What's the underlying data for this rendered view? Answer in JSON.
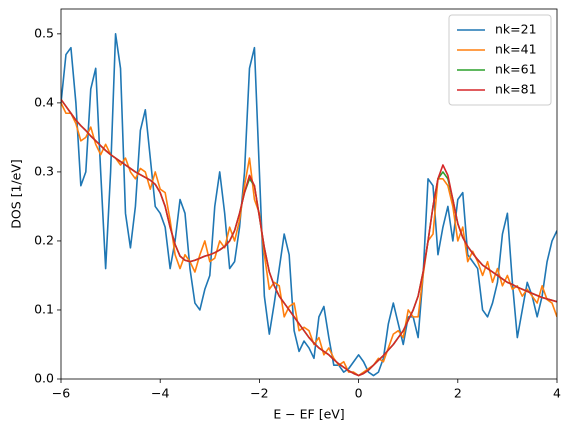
{
  "chart_data": {
    "type": "line",
    "xlabel": "E − EF [eV]",
    "ylabel": "DOS [1/eV]",
    "xlim": [
      -6,
      4
    ],
    "ylim": [
      0,
      0.536
    ],
    "xticks": [
      {
        "value": -6,
        "label": "−6"
      },
      {
        "value": -4,
        "label": "−4"
      },
      {
        "value": -2,
        "label": "−2"
      },
      0,
      2,
      4
    ],
    "yticks": [
      {
        "value": 0,
        "label": "0.0"
      },
      0.1,
      0.2,
      0.3,
      0.4,
      0.5
    ],
    "legend": "upper right",
    "x": [
      -6.0,
      -5.9,
      -5.8,
      -5.7,
      -5.6,
      -5.5,
      -5.4,
      -5.3,
      -5.2,
      -5.1,
      -5.0,
      -4.9,
      -4.8,
      -4.7,
      -4.6,
      -4.5,
      -4.4,
      -4.3,
      -4.2,
      -4.1,
      -4.0,
      -3.9,
      -3.8,
      -3.7,
      -3.6,
      -3.5,
      -3.4,
      -3.3,
      -3.2,
      -3.1,
      -3.0,
      -2.9,
      -2.8,
      -2.7,
      -2.6,
      -2.5,
      -2.4,
      -2.3,
      -2.2,
      -2.1,
      -2.0,
      -1.9,
      -1.8,
      -1.7,
      -1.6,
      -1.5,
      -1.4,
      -1.3,
      -1.2,
      -1.1,
      -1.0,
      -0.9,
      -0.8,
      -0.7,
      -0.6,
      -0.5,
      -0.4,
      -0.3,
      -0.2,
      -0.1,
      0.0,
      0.1,
      0.2,
      0.3,
      0.4,
      0.5,
      0.6,
      0.7,
      0.8,
      0.9,
      1.0,
      1.1,
      1.2,
      1.3,
      1.4,
      1.5,
      1.6,
      1.7,
      1.8,
      1.9,
      2.0,
      2.1,
      2.2,
      2.3,
      2.4,
      2.5,
      2.6,
      2.7,
      2.8,
      2.9,
      3.0,
      3.1,
      3.2,
      3.3,
      3.4,
      3.5,
      3.6,
      3.7,
      3.8,
      3.9,
      4.0
    ],
    "series": [
      {
        "name": "nk=21",
        "color": "#1f77b4",
        "values": [
          0.4,
          0.47,
          0.48,
          0.4,
          0.28,
          0.3,
          0.42,
          0.45,
          0.3,
          0.16,
          0.3,
          0.5,
          0.45,
          0.24,
          0.19,
          0.25,
          0.36,
          0.39,
          0.32,
          0.25,
          0.24,
          0.22,
          0.16,
          0.2,
          0.26,
          0.24,
          0.16,
          0.11,
          0.1,
          0.13,
          0.15,
          0.25,
          0.3,
          0.24,
          0.16,
          0.17,
          0.22,
          0.3,
          0.45,
          0.48,
          0.3,
          0.12,
          0.065,
          0.11,
          0.16,
          0.21,
          0.18,
          0.07,
          0.04,
          0.055,
          0.045,
          0.03,
          0.09,
          0.105,
          0.06,
          0.02,
          0.02,
          0.01,
          0.015,
          0.025,
          0.035,
          0.025,
          0.01,
          0.005,
          0.01,
          0.03,
          0.08,
          0.11,
          0.08,
          0.05,
          0.09,
          0.09,
          0.06,
          0.15,
          0.29,
          0.28,
          0.18,
          0.22,
          0.25,
          0.2,
          0.26,
          0.27,
          0.18,
          0.17,
          0.16,
          0.1,
          0.09,
          0.11,
          0.14,
          0.21,
          0.24,
          0.14,
          0.06,
          0.1,
          0.14,
          0.12,
          0.09,
          0.12,
          0.17,
          0.2,
          0.215
        ]
      },
      {
        "name": "nk=41",
        "color": "#ff7f0e",
        "values": [
          0.4,
          0.385,
          0.385,
          0.37,
          0.345,
          0.35,
          0.365,
          0.34,
          0.325,
          0.34,
          0.325,
          0.32,
          0.31,
          0.32,
          0.3,
          0.29,
          0.305,
          0.3,
          0.275,
          0.3,
          0.275,
          0.27,
          0.23,
          0.18,
          0.16,
          0.18,
          0.17,
          0.155,
          0.18,
          0.2,
          0.17,
          0.175,
          0.2,
          0.19,
          0.22,
          0.2,
          0.23,
          0.28,
          0.32,
          0.26,
          0.24,
          0.18,
          0.13,
          0.14,
          0.135,
          0.09,
          0.105,
          0.11,
          0.07,
          0.075,
          0.07,
          0.05,
          0.06,
          0.035,
          0.045,
          0.03,
          0.02,
          0.025,
          0.01,
          0.01,
          0.005,
          0.01,
          0.015,
          0.02,
          0.03,
          0.025,
          0.045,
          0.065,
          0.07,
          0.06,
          0.1,
          0.09,
          0.09,
          0.15,
          0.2,
          0.21,
          0.29,
          0.29,
          0.28,
          0.25,
          0.2,
          0.22,
          0.17,
          0.185,
          0.17,
          0.15,
          0.17,
          0.14,
          0.16,
          0.135,
          0.15,
          0.13,
          0.135,
          0.12,
          0.13,
          0.12,
          0.11,
          0.135,
          0.115,
          0.11,
          0.09
        ]
      },
      {
        "name": "nk=61",
        "color": "#2ca02c",
        "values": [
          0.405,
          0.395,
          0.385,
          0.375,
          0.367,
          0.36,
          0.352,
          0.345,
          0.338,
          0.331,
          0.325,
          0.32,
          0.315,
          0.31,
          0.305,
          0.3,
          0.296,
          0.292,
          0.288,
          0.282,
          0.27,
          0.25,
          0.22,
          0.195,
          0.178,
          0.172,
          0.17,
          0.172,
          0.175,
          0.178,
          0.18,
          0.183,
          0.187,
          0.192,
          0.2,
          0.215,
          0.24,
          0.27,
          0.29,
          0.28,
          0.235,
          0.19,
          0.155,
          0.135,
          0.12,
          0.11,
          0.1,
          0.09,
          0.08,
          0.07,
          0.06,
          0.052,
          0.045,
          0.04,
          0.035,
          0.028,
          0.022,
          0.017,
          0.012,
          0.008,
          0.005,
          0.008,
          0.013,
          0.02,
          0.027,
          0.034,
          0.042,
          0.05,
          0.06,
          0.07,
          0.085,
          0.1,
          0.12,
          0.155,
          0.2,
          0.25,
          0.29,
          0.3,
          0.29,
          0.26,
          0.225,
          0.205,
          0.192,
          0.182,
          0.173,
          0.165,
          0.16,
          0.155,
          0.15,
          0.145,
          0.14,
          0.137,
          0.133,
          0.13,
          0.127,
          0.124,
          0.121,
          0.118,
          0.116,
          0.114,
          0.112
        ]
      },
      {
        "name": "nk=81",
        "color": "#d62728",
        "values": [
          0.405,
          0.395,
          0.385,
          0.375,
          0.367,
          0.36,
          0.352,
          0.345,
          0.338,
          0.331,
          0.325,
          0.32,
          0.315,
          0.31,
          0.305,
          0.3,
          0.296,
          0.292,
          0.288,
          0.282,
          0.27,
          0.25,
          0.22,
          0.195,
          0.178,
          0.172,
          0.17,
          0.172,
          0.175,
          0.178,
          0.18,
          0.183,
          0.187,
          0.192,
          0.2,
          0.215,
          0.24,
          0.27,
          0.295,
          0.28,
          0.235,
          0.19,
          0.155,
          0.135,
          0.12,
          0.11,
          0.1,
          0.09,
          0.08,
          0.07,
          0.06,
          0.052,
          0.045,
          0.04,
          0.035,
          0.028,
          0.022,
          0.017,
          0.012,
          0.008,
          0.005,
          0.008,
          0.013,
          0.02,
          0.027,
          0.034,
          0.042,
          0.05,
          0.06,
          0.07,
          0.085,
          0.1,
          0.12,
          0.155,
          0.2,
          0.25,
          0.29,
          0.31,
          0.295,
          0.26,
          0.225,
          0.205,
          0.192,
          0.182,
          0.173,
          0.165,
          0.16,
          0.155,
          0.15,
          0.145,
          0.14,
          0.137,
          0.133,
          0.13,
          0.127,
          0.124,
          0.121,
          0.118,
          0.116,
          0.114,
          0.112
        ]
      }
    ]
  }
}
